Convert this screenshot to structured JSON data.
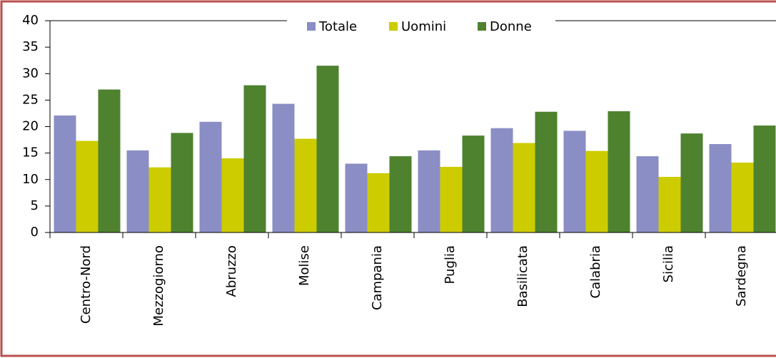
{
  "chart_data": {
    "type": "bar",
    "categories": [
      "Centro-Nord",
      "Mezzogiorno",
      "Abruzzo",
      "Molise",
      "Campania",
      "Puglia",
      "Basilicata",
      "Calabria",
      "Sicilia",
      "Sardegna"
    ],
    "series": [
      {
        "name": "Totale",
        "color": "#8b8ec4",
        "values": [
          22.1,
          15.5,
          20.9,
          24.3,
          13.0,
          15.5,
          19.7,
          19.2,
          14.4,
          16.7
        ]
      },
      {
        "name": "Uomini",
        "color": "#cccc00",
        "values": [
          17.3,
          12.3,
          14.0,
          17.7,
          11.2,
          12.4,
          16.9,
          15.4,
          10.5,
          13.2
        ]
      },
      {
        "name": "Donne",
        "color": "#4e822f",
        "values": [
          27.0,
          18.8,
          27.8,
          31.5,
          14.4,
          18.3,
          22.8,
          22.9,
          18.7,
          20.2
        ]
      }
    ],
    "ylim": [
      0,
      40
    ],
    "yticks": [
      0,
      5,
      10,
      15,
      20,
      25,
      30,
      35,
      40
    ],
    "legend": "top"
  }
}
